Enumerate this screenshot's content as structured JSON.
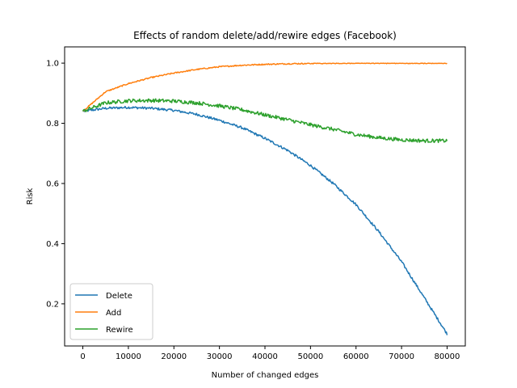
{
  "chart_data": {
    "type": "line",
    "title": "Effects of random delete/add/rewire edges (Facebook)",
    "xlabel": "Number of changed edges",
    "ylabel": "Risk",
    "xlim": [
      -4000,
      84000
    ],
    "ylim": [
      0.06,
      1.054
    ],
    "xticks": [
      0,
      10000,
      20000,
      30000,
      40000,
      50000,
      60000,
      70000,
      80000
    ],
    "xtick_labels": [
      "0",
      "10000",
      "20000",
      "30000",
      "40000",
      "50000",
      "60000",
      "70000",
      "80000"
    ],
    "yticks": [
      0.2,
      0.4,
      0.6,
      0.8,
      1.0
    ],
    "ytick_labels": [
      "0.2",
      "0.4",
      "0.6",
      "0.8",
      "1.0"
    ],
    "grid": false,
    "legend": "lower-left",
    "x": [
      0,
      5000,
      10000,
      15000,
      20000,
      25000,
      30000,
      35000,
      40000,
      45000,
      50000,
      55000,
      60000,
      65000,
      70000,
      75000,
      80000
    ],
    "series": [
      {
        "name": "Delete",
        "color": "#1f77b4",
        "noise": 0.004,
        "values": [
          0.84,
          0.85,
          0.853,
          0.85,
          0.843,
          0.83,
          0.81,
          0.785,
          0.75,
          0.71,
          0.66,
          0.6,
          0.53,
          0.44,
          0.34,
          0.22,
          0.1
        ]
      },
      {
        "name": "Add",
        "color": "#ff7f0e",
        "noise": 0.002,
        "values": [
          0.84,
          0.905,
          0.932,
          0.952,
          0.967,
          0.979,
          0.988,
          0.993,
          0.996,
          0.998,
          0.999,
          1.0,
          1.0,
          1.0,
          1.0,
          1.0,
          1.0
        ]
      },
      {
        "name": "Rewire",
        "color": "#2ca02c",
        "noise": 0.006,
        "values": [
          0.84,
          0.868,
          0.875,
          0.876,
          0.874,
          0.868,
          0.858,
          0.845,
          0.828,
          0.812,
          0.795,
          0.78,
          0.763,
          0.752,
          0.745,
          0.742,
          0.742
        ]
      }
    ]
  }
}
